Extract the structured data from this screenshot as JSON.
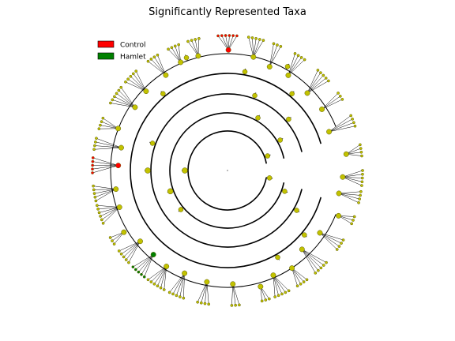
{
  "chart_data": {
    "type": "cladogram",
    "title": "Significantly Represented Taxa",
    "legend": {
      "placement": "top-left",
      "entries": [
        {
          "label": "Control",
          "color": "#ff0000"
        },
        {
          "label": "Hamlet",
          "color": "#008000"
        }
      ]
    },
    "levels": [
      "kingdom",
      "phylum",
      "class",
      "order",
      "family",
      "genus"
    ],
    "colors": {
      "node_default": "#c2c200",
      "node_stroke": "#5a5a00",
      "branch": "#000000",
      "Control": "#ff0000",
      "Hamlet": "#008000"
    },
    "visible_taxa_labels": [],
    "highlighted_clades": [
      {
        "group": "Control",
        "angle_deg": 180,
        "level": "genus"
      },
      {
        "group": "Control",
        "angle_deg": 264,
        "level": "family"
      },
      {
        "group": "Control",
        "angle_deg": 268,
        "level": "family"
      },
      {
        "group": "Hamlet",
        "angle_deg": 124,
        "level": "family"
      },
      {
        "group": "Hamlet",
        "angle_deg": 152,
        "level": "family"
      },
      {
        "group": "Hamlet",
        "angle_deg": 104,
        "level": "family"
      }
    ]
  }
}
